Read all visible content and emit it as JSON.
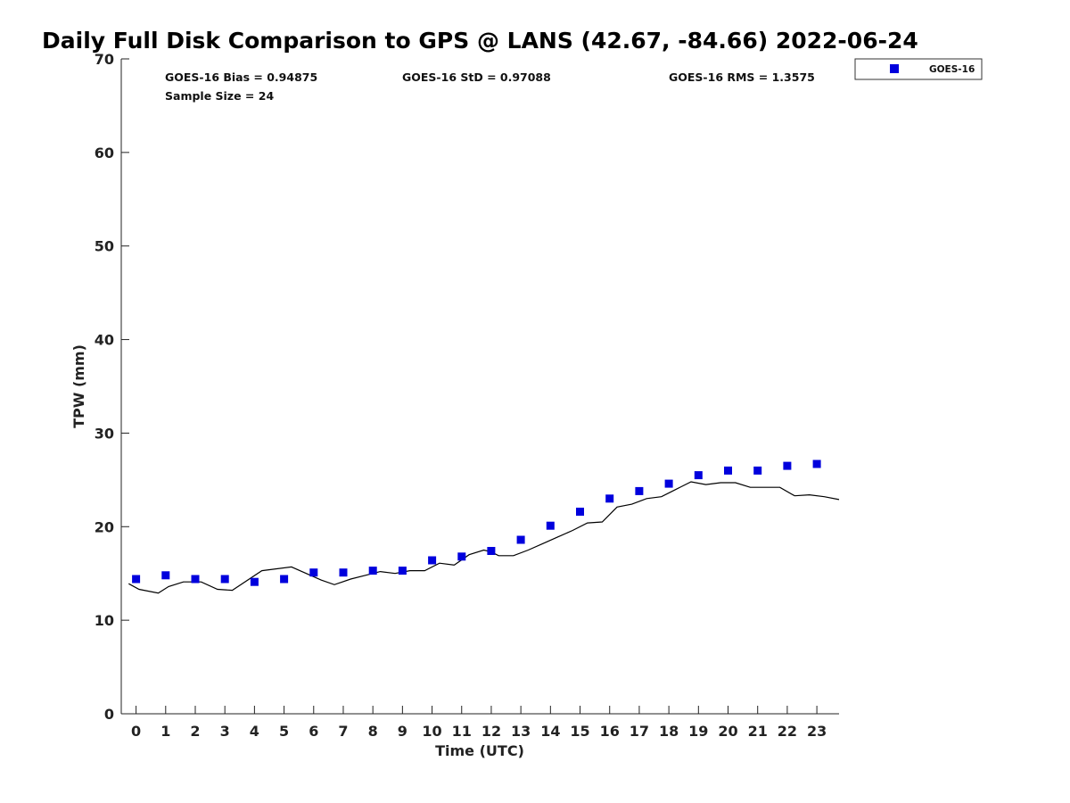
{
  "chart_data": {
    "type": "scatter",
    "title": "Daily Full Disk Comparison to GPS @ LANS (42.67, -84.66) 2022-06-24",
    "xlabel": "Time (UTC)",
    "ylabel": "TPW (mm)",
    "xlim": [
      -0.5,
      23.75
    ],
    "ylim": [
      0,
      70
    ],
    "x_ticks": [
      0,
      1,
      2,
      3,
      4,
      5,
      6,
      7,
      8,
      9,
      10,
      11,
      12,
      13,
      14,
      15,
      16,
      17,
      18,
      19,
      20,
      21,
      22,
      23
    ],
    "y_ticks": [
      0,
      10,
      20,
      30,
      40,
      50,
      60,
      70
    ],
    "stats": {
      "bias": "GOES-16 Bias = 0.94875",
      "std": "GOES-16 StD = 0.97088",
      "rms": "GOES-16 RMS = 1.3575",
      "sample": "Sample Size = 24"
    },
    "legend": {
      "position": "top-right",
      "entries": [
        "GOES-16"
      ]
    },
    "series": [
      {
        "name": "GOES-16",
        "kind": "scatter",
        "color": "#0000dd",
        "x": [
          0,
          1,
          2,
          3,
          4,
          5,
          6,
          7,
          8,
          9,
          10,
          11,
          12,
          13,
          14,
          15,
          16,
          17,
          18,
          19,
          20,
          21,
          22,
          23
        ],
        "y": [
          14.4,
          14.8,
          14.4,
          14.4,
          14.1,
          14.4,
          15.1,
          15.1,
          15.3,
          15.3,
          16.4,
          16.8,
          17.4,
          18.6,
          20.1,
          21.6,
          23.0,
          23.8,
          24.6,
          25.5,
          26.0,
          26.0,
          26.5,
          26.7
        ]
      },
      {
        "kind": "line",
        "color": "#000000",
        "x": [
          -0.25,
          0.1,
          0.75,
          1.1,
          1.6,
          2.2,
          2.75,
          3.25,
          4.25,
          5.25,
          6.25,
          6.7,
          7.25,
          7.75,
          8.25,
          8.75,
          9.25,
          9.75,
          10.25,
          10.75,
          11.25,
          11.75,
          12.0,
          12.25,
          12.75,
          13.25,
          13.75,
          14.25,
          14.75,
          15.25,
          15.75,
          16.25,
          16.75,
          17.25,
          17.75,
          18.25,
          18.75,
          19.25,
          19.75,
          20.25,
          20.75,
          21.25,
          21.75,
          22.25,
          22.75,
          23.25,
          23.75
        ],
        "y": [
          13.9,
          13.3,
          12.9,
          13.6,
          14.1,
          14.1,
          13.3,
          13.2,
          15.3,
          15.7,
          14.3,
          13.8,
          14.4,
          14.8,
          15.2,
          15.0,
          15.3,
          15.3,
          16.1,
          15.9,
          17.0,
          17.5,
          17.3,
          16.9,
          16.9,
          17.5,
          18.2,
          18.9,
          19.6,
          20.4,
          20.5,
          22.1,
          22.4,
          23.0,
          23.2,
          24.0,
          24.8,
          24.5,
          24.7,
          24.7,
          24.2,
          24.2,
          24.2,
          23.3,
          23.4,
          23.2,
          22.9
        ]
      }
    ]
  }
}
